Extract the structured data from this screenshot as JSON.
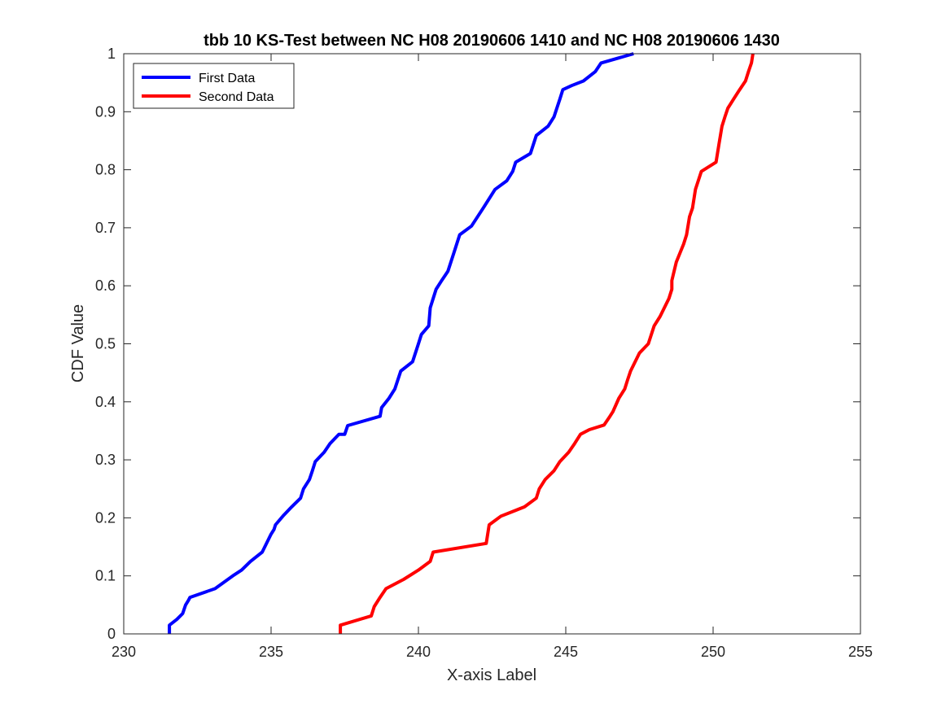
{
  "chart_data": {
    "type": "line",
    "title": "tbb 10 KS-Test between NC H08 20190606 1410 and NC H08 20190606 1430",
    "xlabel": "X-axis Label",
    "ylabel": "CDF Value",
    "xlim": [
      230,
      255
    ],
    "ylim": [
      0,
      1
    ],
    "xticks": [
      "230",
      "235",
      "240",
      "245",
      "250",
      "255"
    ],
    "yticks": [
      "0",
      "0.1",
      "0.2",
      "0.3",
      "0.4",
      "0.5",
      "0.6",
      "0.7",
      "0.8",
      "0.9",
      "1"
    ],
    "grid": false,
    "legend_position": "top-left",
    "series": [
      {
        "name": "First Data",
        "color": "#0000ff",
        "x": [
          231.55,
          231.55,
          231.8,
          232.0,
          232.1,
          232.2,
          232.25,
          233.1,
          233.7,
          234.0,
          234.3,
          234.7,
          235.0,
          235.1,
          235.15,
          235.4,
          235.7,
          236.0,
          236.1,
          236.3,
          236.4,
          236.5,
          236.8,
          237.0,
          237.3,
          237.5,
          237.6,
          238.7,
          238.75,
          239.0,
          239.2,
          239.4,
          239.8,
          240.0,
          240.1,
          240.35,
          240.4,
          240.5,
          240.6,
          240.8,
          241.0,
          241.2,
          241.4,
          241.8,
          242.2,
          242.6,
          243.0,
          243.2,
          243.3,
          243.8,
          244.0,
          244.4,
          244.6,
          244.8,
          244.9,
          245.2,
          245.6,
          246.0,
          246.2,
          247.3
        ],
        "y": [
          0.0,
          0.015,
          0.025,
          0.035,
          0.05,
          0.058,
          0.063,
          0.078,
          0.1,
          0.11,
          0.125,
          0.141,
          0.172,
          0.18,
          0.188,
          0.203,
          0.219,
          0.234,
          0.25,
          0.266,
          0.281,
          0.297,
          0.313,
          0.328,
          0.344,
          0.344,
          0.359,
          0.375,
          0.39,
          0.406,
          0.422,
          0.453,
          0.469,
          0.5,
          0.516,
          0.531,
          0.562,
          0.578,
          0.594,
          0.61,
          0.625,
          0.656,
          0.688,
          0.703,
          0.734,
          0.766,
          0.781,
          0.797,
          0.813,
          0.828,
          0.859,
          0.875,
          0.891,
          0.922,
          0.938,
          0.945,
          0.953,
          0.969,
          0.984,
          1.0
        ]
      },
      {
        "name": "Second Data",
        "color": "#ff0000",
        "x": [
          237.35,
          237.35,
          238.4,
          238.5,
          238.7,
          238.9,
          239.5,
          240.0,
          240.4,
          240.5,
          242.3,
          242.4,
          242.8,
          243.6,
          244.0,
          244.1,
          244.3,
          244.6,
          244.8,
          245.1,
          245.3,
          245.5,
          245.8,
          246.3,
          246.5,
          246.6,
          246.8,
          247.0,
          247.1,
          247.2,
          247.5,
          247.8,
          248.0,
          248.2,
          248.5,
          248.6,
          248.6,
          248.75,
          249.0,
          249.1,
          249.2,
          249.3,
          249.4,
          249.6,
          250.1,
          250.2,
          250.3,
          250.4,
          250.5,
          250.7,
          250.9,
          251.1,
          251.2,
          251.3,
          251.35
        ],
        "y": [
          0.0,
          0.015,
          0.031,
          0.047,
          0.063,
          0.078,
          0.094,
          0.11,
          0.125,
          0.141,
          0.156,
          0.188,
          0.203,
          0.219,
          0.234,
          0.25,
          0.266,
          0.281,
          0.297,
          0.313,
          0.328,
          0.344,
          0.352,
          0.36,
          0.375,
          0.383,
          0.406,
          0.422,
          0.438,
          0.453,
          0.484,
          0.5,
          0.531,
          0.547,
          0.578,
          0.594,
          0.609,
          0.641,
          0.672,
          0.688,
          0.719,
          0.734,
          0.766,
          0.797,
          0.813,
          0.844,
          0.875,
          0.891,
          0.906,
          0.922,
          0.938,
          0.953,
          0.969,
          0.984,
          1.0
        ]
      }
    ]
  }
}
